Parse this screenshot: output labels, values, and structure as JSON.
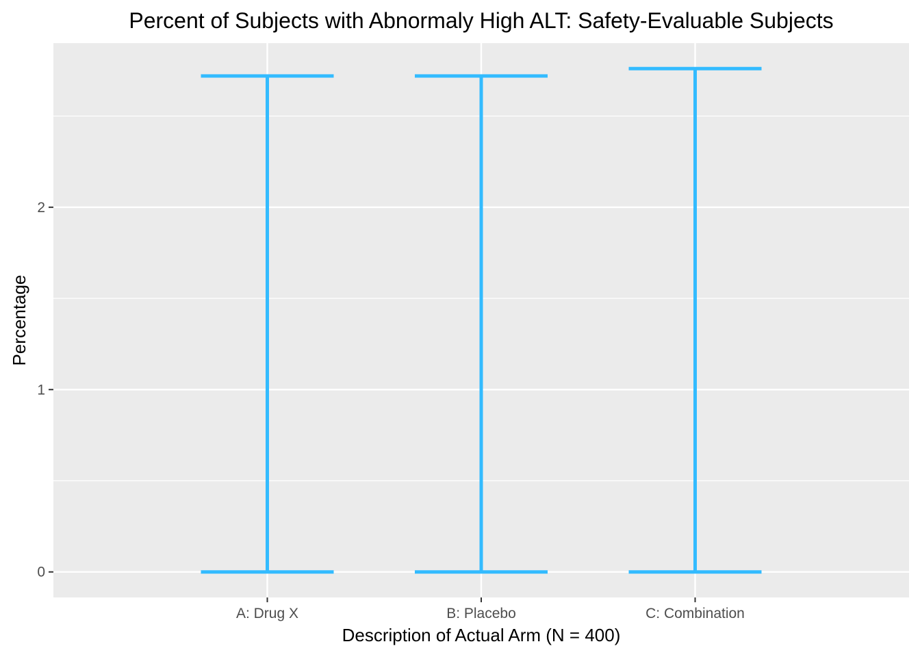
{
  "chart_data": {
    "type": "errorbar",
    "title": "Percent of Subjects with Abnormaly High ALT: Safety-Evaluable Subjects",
    "xlabel": "Description of Actual Arm (N = 400)",
    "ylabel": "Percentage",
    "categories": [
      "A: Drug X",
      "B: Placebo",
      "C: Combination"
    ],
    "lower": [
      0,
      0,
      0
    ],
    "upper": [
      2.72,
      2.72,
      2.76
    ],
    "ylim": [
      -0.14,
      2.9
    ],
    "yticks": [
      0,
      1,
      2
    ],
    "ytick_labels": [
      "0",
      "1",
      "2"
    ],
    "grid": true,
    "legend": "none",
    "colors": {
      "panel_bg": "#ebebeb",
      "grid": "#ffffff",
      "series": "#33bbff",
      "tick": "#333333"
    }
  }
}
